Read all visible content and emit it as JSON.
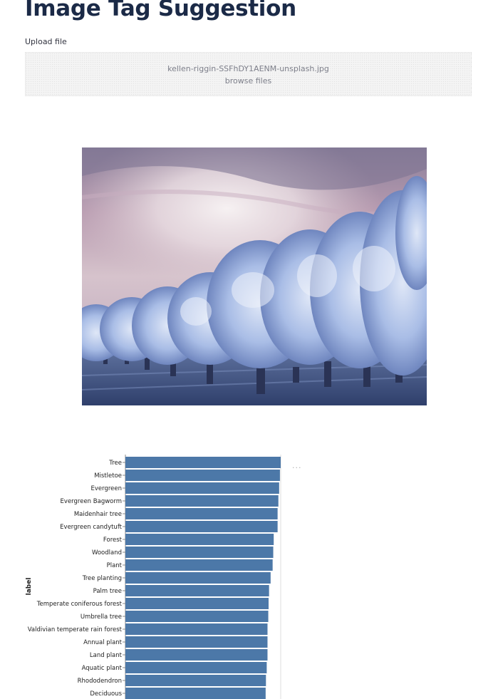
{
  "page": {
    "title": "Image Tag Suggestion"
  },
  "uploader": {
    "label": "Upload file",
    "filename": "kellen-riggin-SSFhDY1AENM-unsplash.jpg",
    "browse_label": "browse files"
  },
  "image": {
    "subject": "orchard-of-blossoming-trees-photo"
  },
  "chart_menu_label": "···",
  "colors": {
    "bar": "#4c78a8",
    "title": "#1b2a47"
  },
  "chart_data": {
    "type": "bar",
    "orientation": "horizontal",
    "ylabel": "label",
    "xlabel": "",
    "categories": [
      "Tree",
      "Mistletoe",
      "Evergreen",
      "Evergreen Bagworm",
      "Maidenhair tree",
      "Evergreen candytuft",
      "Forest",
      "Woodland",
      "Plant",
      "Tree planting",
      "Palm tree",
      "Temperate coniferous forest",
      "Umbrella tree",
      "Valdivian temperate rain forest",
      "Annual plant",
      "Land plant",
      "Aquatic plant",
      "Rhododendron",
      "Deciduous"
    ],
    "values": [
      1.0,
      0.995,
      0.99,
      0.985,
      0.98,
      0.98,
      0.955,
      0.952,
      0.948,
      0.935,
      0.925,
      0.922,
      0.92,
      0.915,
      0.915,
      0.915,
      0.91,
      0.905,
      0.903
    ],
    "xlim": [
      0,
      1.0
    ],
    "grid": true
  }
}
